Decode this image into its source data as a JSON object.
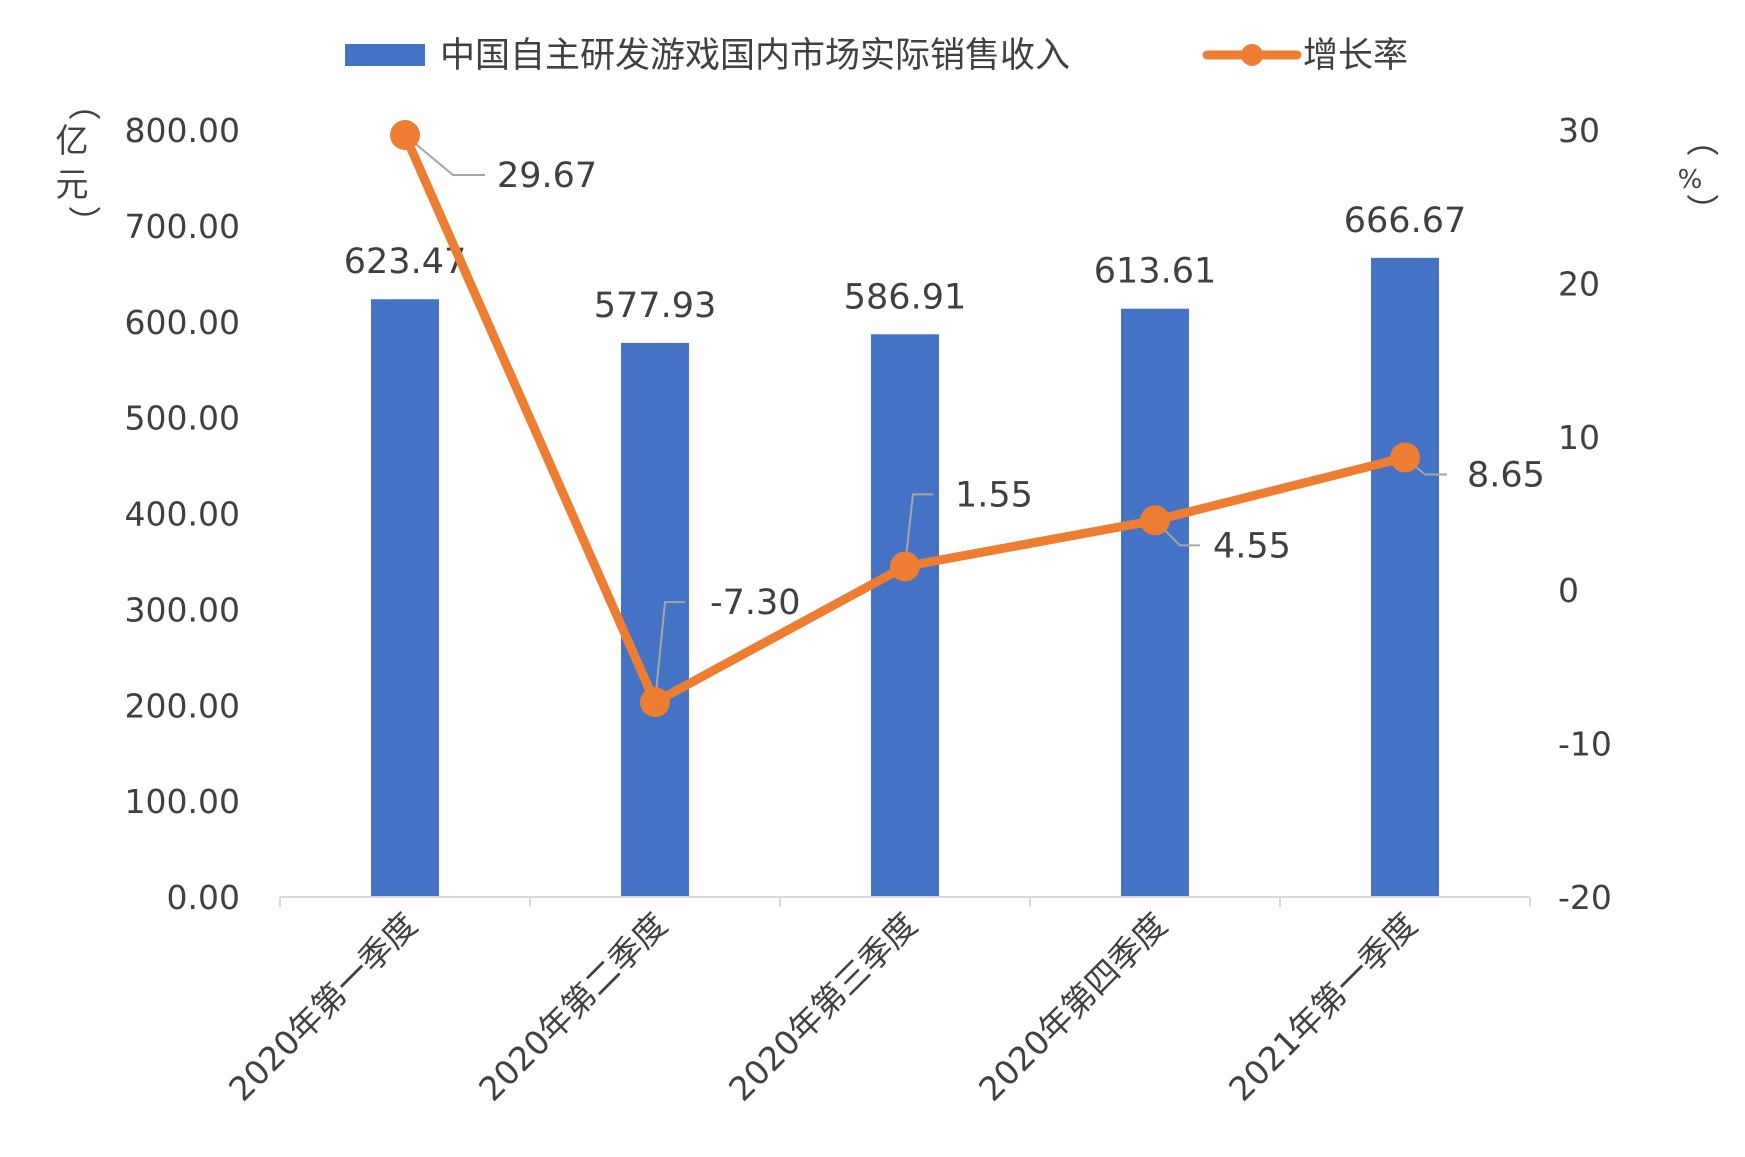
{
  "chart_data": {
    "type": "bar",
    "categories": [
      "2020年第一季度",
      "2020年第二季度",
      "2020年第三季度",
      "2020年第四季度",
      "2021年第一季度"
    ],
    "series": [
      {
        "name": "中国自主研发游戏国内市场实际销售收入",
        "type": "bar",
        "axis": "left",
        "color": "#4472C4",
        "values": [
          623.47,
          577.93,
          586.91,
          613.61,
          666.67
        ],
        "labels": [
          "623.47",
          "577.93",
          "586.91",
          "613.61",
          "666.67"
        ]
      },
      {
        "name": "增长率",
        "type": "line",
        "axis": "right",
        "color": "#ED7D31",
        "values": [
          29.67,
          -7.3,
          1.55,
          4.55,
          8.65
        ],
        "labels": [
          "29.67",
          "-7.30",
          "1.55",
          "4.55",
          "8.65"
        ]
      }
    ],
    "y_left": {
      "unit_label": [
        "（",
        "亿",
        "元",
        "）"
      ],
      "ylim": [
        0,
        800
      ],
      "ticks": [
        "0.00",
        "100.00",
        "200.00",
        "300.00",
        "400.00",
        "500.00",
        "600.00",
        "700.00",
        "800.00"
      ]
    },
    "y_right": {
      "unit_label": [
        "（",
        "%",
        "）"
      ],
      "ylim": [
        -20,
        30
      ],
      "ticks": [
        "-20",
        "-10",
        "0",
        "10",
        "20",
        "30"
      ]
    },
    "legend": "top",
    "grid": false
  }
}
